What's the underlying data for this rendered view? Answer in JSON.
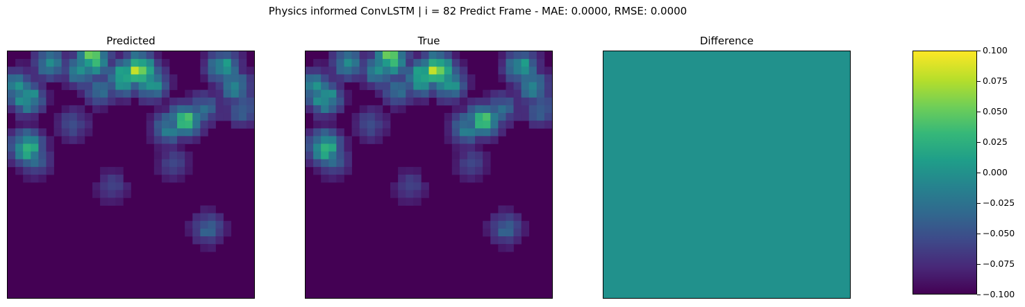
{
  "figure": {
    "suptitle": "Physics informed ConvLSTM | i = 82 Predict Frame - MAE: 0.0000, RMSE: 0.0000"
  },
  "panels": [
    {
      "title": "Predicted"
    },
    {
      "title": "True"
    },
    {
      "title": "Difference"
    }
  ],
  "colorbar": {
    "ticks": [
      "0.100",
      "0.075",
      "0.050",
      "0.025",
      "0.000",
      "−0.025",
      "−0.050",
      "−0.075",
      "−0.100"
    ],
    "colormap": "viridis"
  },
  "chart_data": [
    {
      "type": "heatmap",
      "title": "Predicted",
      "grid": [
        32,
        32
      ],
      "colormap": "viridis",
      "fill": "#440154",
      "hotspots": [
        {
          "col": 10.5,
          "row": 0.5,
          "value": 0.75
        },
        {
          "col": 16.5,
          "row": 2.0,
          "value": 0.85
        },
        {
          "col": 14.5,
          "row": 3.0,
          "value": 0.7
        },
        {
          "col": 18.0,
          "row": 3.5,
          "value": 0.6
        },
        {
          "col": 9.0,
          "row": 2.0,
          "value": 0.5
        },
        {
          "col": 5.0,
          "row": 1.0,
          "value": 0.45
        },
        {
          "col": 2.0,
          "row": 5.5,
          "value": 0.6
        },
        {
          "col": 0.5,
          "row": 4.0,
          "value": 0.5
        },
        {
          "col": 27.5,
          "row": 1.5,
          "value": 0.55
        },
        {
          "col": 29.0,
          "row": 4.0,
          "value": 0.45
        },
        {
          "col": 30.0,
          "row": 7.0,
          "value": 0.35
        },
        {
          "col": 22.5,
          "row": 8.5,
          "value": 0.7
        },
        {
          "col": 20.5,
          "row": 9.5,
          "value": 0.45
        },
        {
          "col": 25.0,
          "row": 7.0,
          "value": 0.35
        },
        {
          "col": 2.0,
          "row": 12.0,
          "value": 0.65
        },
        {
          "col": 3.0,
          "row": 13.5,
          "value": 0.35
        },
        {
          "col": 11.5,
          "row": 4.5,
          "value": 0.35
        },
        {
          "col": 8.0,
          "row": 9.0,
          "value": 0.25
        },
        {
          "col": 25.5,
          "row": 22.5,
          "value": 0.32
        },
        {
          "col": 13.0,
          "row": 17.0,
          "value": 0.2
        },
        {
          "col": 21.0,
          "row": 14.0,
          "value": 0.22
        }
      ]
    },
    {
      "type": "heatmap",
      "title": "True",
      "grid": [
        32,
        32
      ],
      "colormap": "viridis",
      "fill": "#440154",
      "hotspots": [
        {
          "col": 10.5,
          "row": 0.5,
          "value": 0.75
        },
        {
          "col": 16.5,
          "row": 2.0,
          "value": 0.85
        },
        {
          "col": 14.5,
          "row": 3.0,
          "value": 0.7
        },
        {
          "col": 18.0,
          "row": 3.5,
          "value": 0.6
        },
        {
          "col": 9.0,
          "row": 2.0,
          "value": 0.5
        },
        {
          "col": 5.0,
          "row": 1.0,
          "value": 0.45
        },
        {
          "col": 2.0,
          "row": 5.5,
          "value": 0.6
        },
        {
          "col": 0.5,
          "row": 4.0,
          "value": 0.5
        },
        {
          "col": 27.5,
          "row": 1.5,
          "value": 0.55
        },
        {
          "col": 29.0,
          "row": 4.0,
          "value": 0.45
        },
        {
          "col": 30.0,
          "row": 7.0,
          "value": 0.35
        },
        {
          "col": 22.5,
          "row": 8.5,
          "value": 0.7
        },
        {
          "col": 20.5,
          "row": 9.5,
          "value": 0.45
        },
        {
          "col": 25.0,
          "row": 7.0,
          "value": 0.35
        },
        {
          "col": 2.0,
          "row": 12.0,
          "value": 0.65
        },
        {
          "col": 3.0,
          "row": 13.5,
          "value": 0.35
        },
        {
          "col": 11.5,
          "row": 4.5,
          "value": 0.35
        },
        {
          "col": 8.0,
          "row": 9.0,
          "value": 0.25
        },
        {
          "col": 25.5,
          "row": 22.5,
          "value": 0.32
        },
        {
          "col": 13.0,
          "row": 17.0,
          "value": 0.2
        },
        {
          "col": 21.0,
          "row": 14.0,
          "value": 0.22
        }
      ]
    },
    {
      "type": "heatmap",
      "title": "Difference",
      "grid": [
        32,
        32
      ],
      "colormap": "viridis",
      "fill": "#21918c",
      "uniform_value": 0.0,
      "hotspots": []
    }
  ]
}
